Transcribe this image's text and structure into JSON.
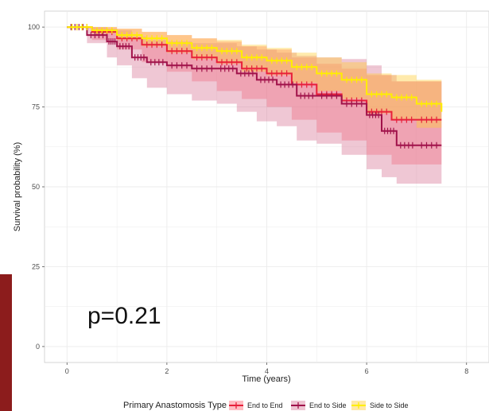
{
  "chart_data": {
    "type": "line",
    "xlabel": "Time (years)",
    "ylabel": "Survival probability (%)",
    "xlim": [
      -0.45,
      8.45
    ],
    "ylim": [
      -5,
      105
    ],
    "x_ticks": [
      "0",
      "2",
      "4",
      "6",
      "8"
    ],
    "y_ticks": [
      "0",
      "25",
      "50",
      "75",
      "100"
    ],
    "grid": true,
    "legend_title": "Primary Anastomosis Type",
    "legend_position": "bottom",
    "annotation": "p=0.21",
    "series": [
      {
        "name": "End to End",
        "color": "#e8203a",
        "band_color": "#ff6b78",
        "x": [
          0,
          0.5,
          1.0,
          1.5,
          2.0,
          2.5,
          3.0,
          3.5,
          4.0,
          4.5,
          5.0,
          5.5,
          6.0,
          6.5,
          7.0,
          7.5
        ],
        "y": [
          100,
          98.5,
          96.5,
          94.5,
          92.5,
          90.5,
          89,
          87,
          85.5,
          82,
          79,
          77,
          73.5,
          71,
          71,
          71
        ],
        "lower": [
          100,
          96,
          93,
          89,
          86,
          83,
          80,
          77.5,
          75,
          71,
          67,
          64.5,
          60,
          57,
          57,
          57
        ],
        "upper": [
          100,
          100,
          99.5,
          98.5,
          97.5,
          96.5,
          95.5,
          94,
          93,
          90.5,
          88.5,
          87,
          85,
          83,
          83,
          83
        ]
      },
      {
        "name": "End to Side",
        "color": "#a0124a",
        "band_color": "#d97a98",
        "x": [
          0,
          0.4,
          0.8,
          1.0,
          1.3,
          1.6,
          2.0,
          2.5,
          3.0,
          3.4,
          3.8,
          4.2,
          4.6,
          5.0,
          5.5,
          6.0,
          6.3,
          6.6,
          7.0,
          7.5
        ],
        "y": [
          100,
          97.5,
          95.5,
          94,
          90.5,
          89,
          88,
          87,
          87,
          85.5,
          83.5,
          82,
          78.5,
          78.5,
          76,
          72.5,
          67.5,
          63,
          63,
          63
        ],
        "lower": [
          100,
          95,
          90.5,
          88,
          84,
          81,
          79,
          77,
          76,
          73.5,
          70.5,
          69,
          64.5,
          63.5,
          60,
          55.5,
          53,
          51,
          51,
          51
        ],
        "upper": [
          100,
          100,
          99.5,
          99,
          97,
          96,
          95.5,
          95,
          95,
          94,
          93,
          92,
          91,
          90.5,
          90,
          88,
          85,
          83,
          83,
          83
        ]
      },
      {
        "name": "Side to Side",
        "color": "#ffee00",
        "band_color": "#ffcd3a",
        "x": [
          0,
          0.5,
          1.0,
          1.5,
          2.0,
          2.5,
          3.0,
          3.5,
          4.0,
          4.5,
          5.0,
          5.5,
          6.0,
          6.5,
          7.0,
          7.5
        ],
        "y": [
          100,
          99,
          97.5,
          96.5,
          95,
          93.5,
          92.5,
          90.5,
          89.5,
          87.5,
          85.5,
          83.5,
          79,
          78,
          76,
          73.5
        ],
        "lower": [
          100,
          98,
          96,
          94,
          92,
          90,
          88.5,
          86,
          85,
          82.5,
          80,
          77.5,
          73,
          71,
          68.5,
          66
        ],
        "upper": [
          100,
          100,
          99.5,
          98.5,
          97.5,
          96.5,
          96,
          94.5,
          93.5,
          92,
          90.5,
          89,
          85.5,
          85,
          83.5,
          81
        ]
      }
    ]
  }
}
